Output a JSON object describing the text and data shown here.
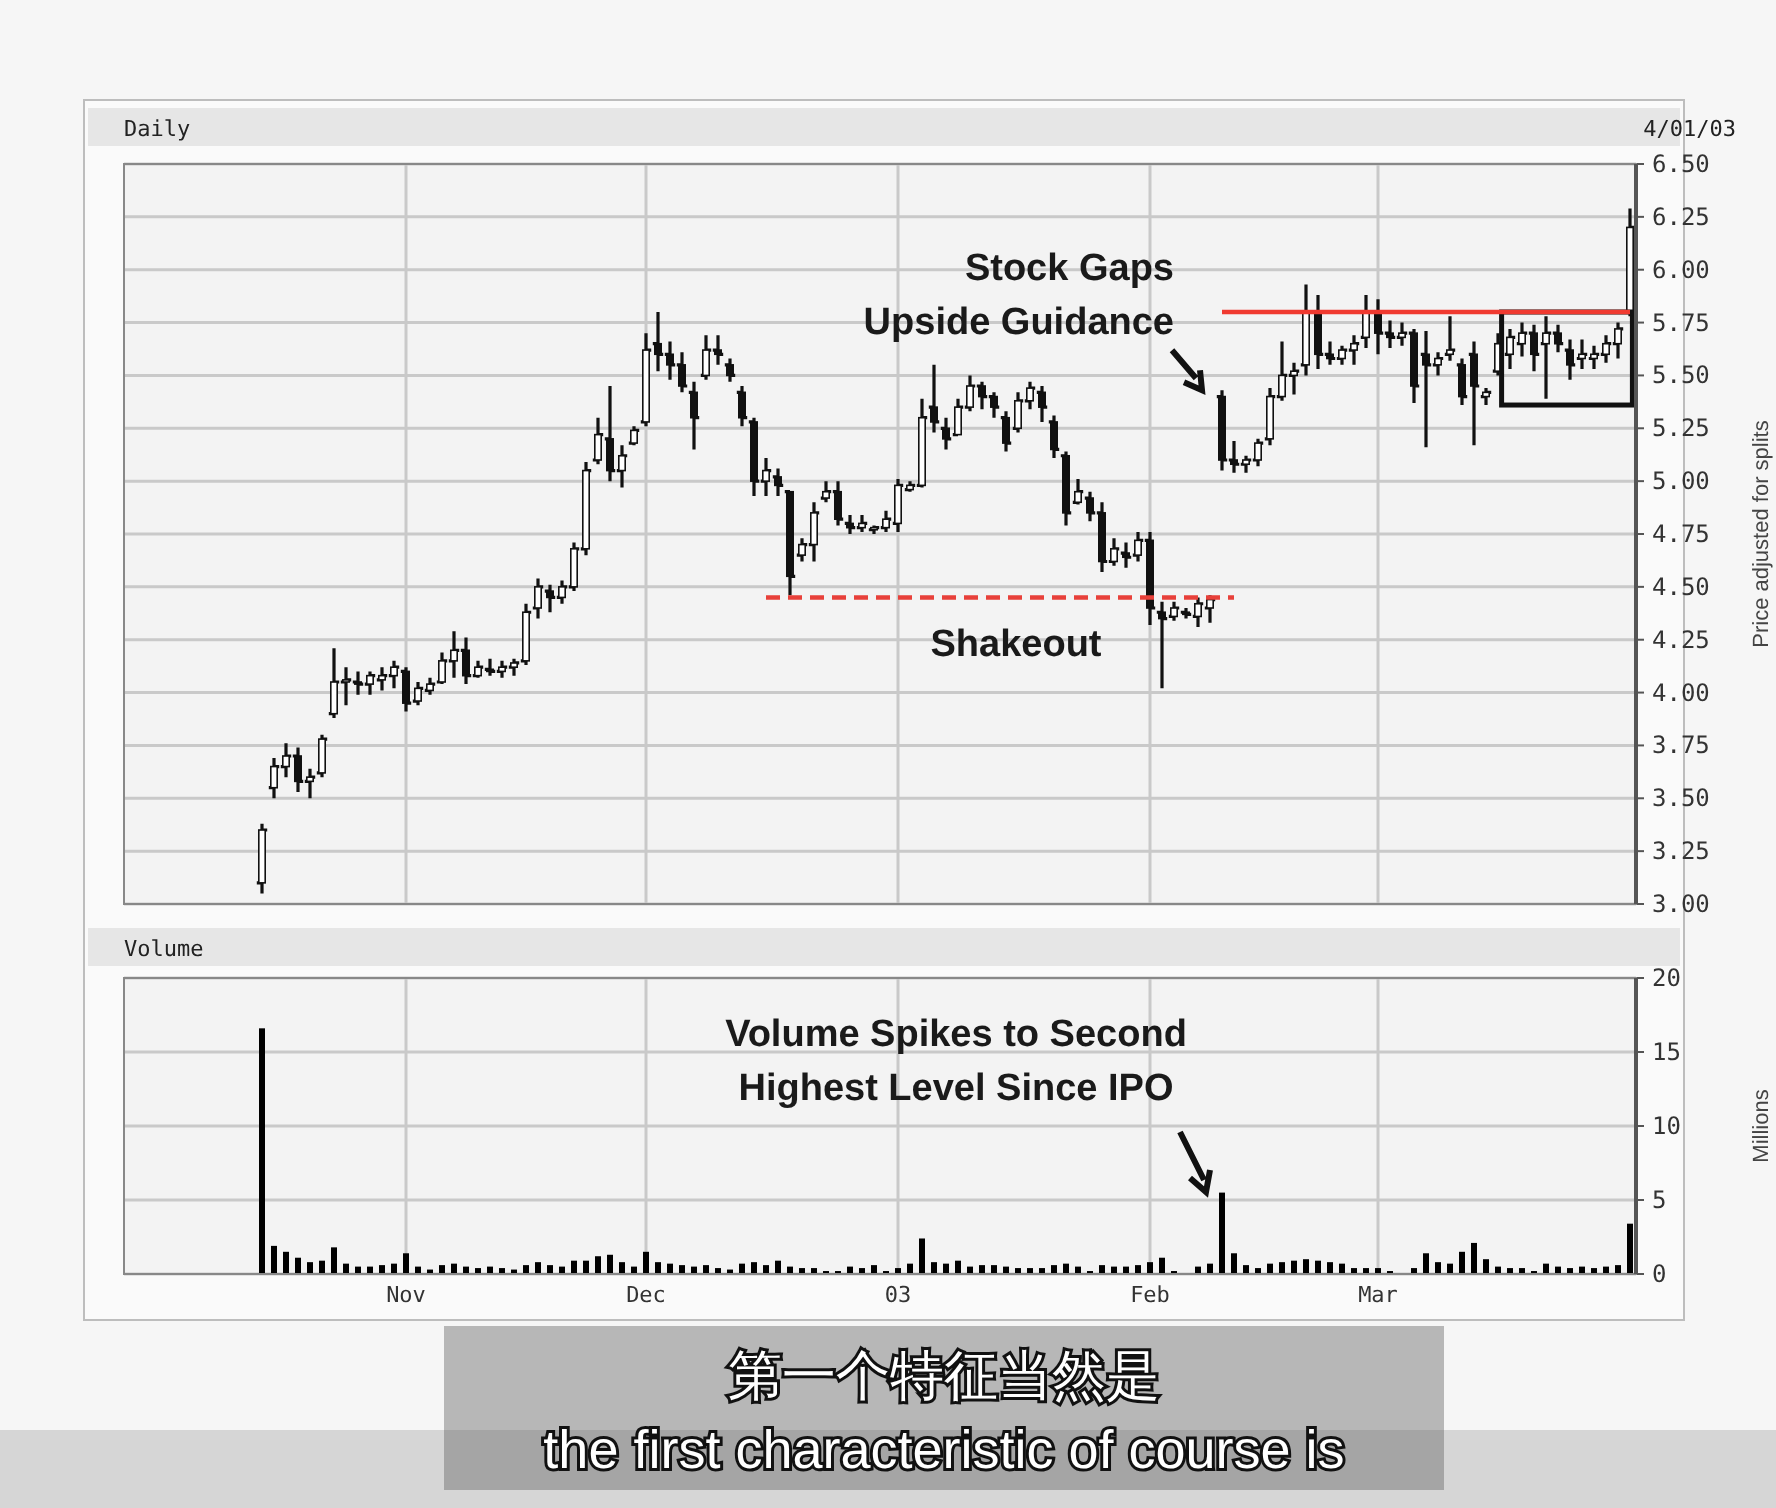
{
  "chart_data": [
    {
      "type": "candlestick",
      "title": "Daily",
      "ylabel": "Price adjusted for splits",
      "categories": [
        null,
        null,
        null,
        null,
        null,
        null,
        null,
        null,
        null,
        null,
        null,
        null,
        null,
        null,
        null,
        null,
        null,
        null,
        null,
        null,
        null,
        null,
        null,
        null,
        null,
        null,
        null,
        null,
        null,
        null,
        null,
        null,
        null,
        null,
        null,
        null,
        null,
        null,
        null,
        null,
        null,
        null,
        null,
        null,
        null,
        null,
        null,
        null,
        null,
        null,
        null,
        null,
        null,
        null,
        null,
        null,
        null,
        null,
        null,
        null,
        null,
        null,
        null,
        null,
        null,
        null,
        null,
        null,
        null,
        null,
        null,
        null,
        null,
        null,
        null,
        null,
        null,
        null,
        null,
        null,
        null,
        null,
        null,
        null,
        null,
        null,
        null,
        null,
        null,
        null,
        null,
        null,
        null,
        null,
        null,
        null,
        null,
        null,
        null,
        null,
        null,
        null,
        null,
        null,
        null,
        null,
        null,
        null,
        null,
        null,
        null,
        null,
        null,
        null,
        null,
        null,
        null,
        null,
        null,
        null,
        null,
        null,
        null,
        null,
        null,
        null
      ],
      "ohlc": [
        null,
        null,
        null,
        null,
        null,
        null,
        null,
        null,
        null,
        null,
        null,
        [
          3.1,
          3.38,
          3.05,
          3.35
        ],
        [
          3.55,
          3.69,
          3.5,
          3.65
        ],
        [
          3.65,
          3.76,
          3.6,
          3.7
        ],
        [
          3.7,
          3.74,
          3.53,
          3.58
        ],
        [
          3.58,
          3.64,
          3.5,
          3.6
        ],
        [
          3.62,
          3.8,
          3.6,
          3.78
        ],
        [
          3.9,
          4.21,
          3.88,
          4.05
        ],
        [
          4.05,
          4.12,
          3.94,
          4.06
        ],
        [
          4.05,
          4.1,
          3.99,
          4.04
        ],
        [
          4.04,
          4.1,
          3.99,
          4.08
        ],
        [
          4.06,
          4.12,
          4.01,
          4.08
        ],
        [
          4.08,
          4.15,
          4.02,
          4.12
        ],
        [
          4.1,
          4.12,
          3.91,
          3.95
        ],
        [
          3.96,
          4.05,
          3.94,
          4.02
        ],
        [
          4.01,
          4.07,
          3.99,
          4.04
        ],
        [
          4.05,
          4.19,
          4.04,
          4.15
        ],
        [
          4.15,
          4.29,
          4.07,
          4.2
        ],
        [
          4.2,
          4.26,
          4.04,
          4.08
        ],
        [
          4.08,
          4.15,
          4.07,
          4.12
        ],
        [
          4.11,
          4.16,
          4.08,
          4.1
        ],
        [
          4.1,
          4.15,
          4.07,
          4.12
        ],
        [
          4.12,
          4.16,
          4.08,
          4.14
        ],
        [
          4.15,
          4.42,
          4.13,
          4.38
        ],
        [
          4.4,
          4.54,
          4.35,
          4.5
        ],
        [
          4.48,
          4.51,
          4.38,
          4.45
        ],
        [
          4.45,
          4.53,
          4.42,
          4.5
        ],
        [
          4.5,
          4.71,
          4.48,
          4.68
        ],
        [
          4.68,
          5.09,
          4.65,
          5.05
        ],
        [
          5.1,
          5.3,
          5.08,
          5.22
        ],
        [
          5.2,
          5.45,
          5.0,
          5.05
        ],
        [
          5.05,
          5.17,
          4.97,
          5.12
        ],
        [
          5.18,
          5.26,
          5.17,
          5.24
        ],
        [
          5.28,
          5.7,
          5.26,
          5.62
        ],
        [
          5.65,
          5.8,
          5.52,
          5.6
        ],
        [
          5.6,
          5.66,
          5.48,
          5.55
        ],
        [
          5.55,
          5.61,
          5.42,
          5.45
        ],
        [
          5.42,
          5.47,
          5.15,
          5.3
        ],
        [
          5.5,
          5.69,
          5.48,
          5.62
        ],
        [
          5.62,
          5.69,
          5.55,
          5.6
        ],
        [
          5.55,
          5.58,
          5.47,
          5.5
        ],
        [
          5.42,
          5.45,
          5.26,
          5.3
        ],
        [
          5.28,
          5.3,
          4.93,
          5.0
        ],
        [
          5.0,
          5.11,
          4.93,
          5.05
        ],
        [
          5.02,
          5.06,
          4.93,
          4.98
        ],
        [
          4.95,
          4.95,
          4.46,
          4.55
        ],
        [
          4.65,
          4.73,
          4.62,
          4.7
        ],
        [
          4.7,
          4.9,
          4.62,
          4.85
        ],
        [
          4.92,
          5.0,
          4.9,
          4.95
        ],
        [
          4.95,
          5.0,
          4.79,
          4.82
        ],
        [
          4.8,
          4.84,
          4.75,
          4.78
        ],
        [
          4.78,
          4.84,
          4.76,
          4.8
        ],
        [
          4.77,
          4.79,
          4.75,
          4.78
        ],
        [
          4.78,
          4.86,
          4.76,
          4.82
        ],
        [
          4.8,
          5.01,
          4.76,
          4.98
        ],
        [
          4.96,
          5.0,
          4.95,
          4.98
        ],
        [
          4.98,
          5.39,
          4.97,
          5.3
        ],
        [
          5.35,
          5.55,
          5.23,
          5.28
        ],
        [
          5.25,
          5.3,
          5.15,
          5.2
        ],
        [
          5.22,
          5.39,
          5.22,
          5.35
        ],
        [
          5.35,
          5.5,
          5.33,
          5.45
        ],
        [
          5.45,
          5.47,
          5.34,
          5.4
        ],
        [
          5.4,
          5.42,
          5.3,
          5.35
        ],
        [
          5.3,
          5.33,
          5.14,
          5.18
        ],
        [
          5.25,
          5.42,
          5.23,
          5.38
        ],
        [
          5.38,
          5.47,
          5.34,
          5.44
        ],
        [
          5.42,
          5.45,
          5.28,
          5.35
        ],
        [
          5.28,
          5.31,
          5.11,
          5.15
        ],
        [
          5.12,
          5.14,
          4.79,
          4.85
        ],
        [
          4.9,
          5.01,
          4.89,
          4.95
        ],
        [
          4.92,
          4.95,
          4.81,
          4.85
        ],
        [
          4.85,
          4.9,
          4.57,
          4.62
        ],
        [
          4.62,
          4.73,
          4.6,
          4.68
        ],
        [
          4.66,
          4.71,
          4.59,
          4.64
        ],
        [
          4.65,
          4.76,
          4.62,
          4.72
        ],
        [
          4.72,
          4.76,
          4.32,
          4.4
        ],
        [
          4.38,
          4.43,
          4.02,
          4.35
        ],
        [
          4.36,
          4.43,
          4.34,
          4.4
        ],
        [
          4.38,
          4.4,
          4.35,
          4.37
        ],
        [
          4.36,
          4.45,
          4.31,
          4.42
        ],
        [
          4.4,
          4.46,
          4.33,
          4.44
        ],
        [
          5.4,
          5.43,
          5.05,
          5.1
        ],
        [
          5.1,
          5.19,
          5.04,
          5.08
        ],
        [
          5.08,
          5.12,
          5.04,
          5.1
        ],
        [
          5.1,
          5.2,
          5.07,
          5.18
        ],
        [
          5.2,
          5.44,
          5.17,
          5.4
        ],
        [
          5.4,
          5.66,
          5.38,
          5.5
        ],
        [
          5.5,
          5.56,
          5.41,
          5.52
        ],
        [
          5.55,
          5.93,
          5.5,
          5.8
        ],
        [
          5.8,
          5.88,
          5.53,
          5.6
        ],
        [
          5.6,
          5.66,
          5.55,
          5.58
        ],
        [
          5.58,
          5.64,
          5.55,
          5.62
        ],
        [
          5.62,
          5.69,
          5.55,
          5.65
        ],
        [
          5.68,
          5.88,
          5.63,
          5.8
        ],
        [
          5.8,
          5.86,
          5.6,
          5.7
        ],
        [
          5.7,
          5.76,
          5.63,
          5.68
        ],
        [
          5.68,
          5.75,
          5.64,
          5.7
        ],
        [
          5.7,
          5.72,
          5.37,
          5.45
        ],
        [
          5.6,
          5.71,
          5.16,
          5.55
        ],
        [
          5.55,
          5.61,
          5.5,
          5.58
        ],
        [
          5.6,
          5.78,
          5.57,
          5.62
        ],
        [
          5.55,
          5.58,
          5.36,
          5.4
        ],
        [
          5.6,
          5.66,
          5.17,
          5.45
        ],
        [
          5.4,
          5.44,
          5.36,
          5.42
        ],
        [
          5.52,
          5.7,
          5.5,
          5.65
        ],
        [
          5.6,
          5.72,
          5.53,
          5.68
        ],
        [
          5.65,
          5.75,
          5.59,
          5.7
        ],
        [
          5.7,
          5.74,
          5.52,
          5.6
        ],
        [
          5.65,
          5.78,
          5.39,
          5.7
        ],
        [
          5.7,
          5.74,
          5.61,
          5.65
        ],
        [
          5.62,
          5.67,
          5.48,
          5.55
        ],
        [
          5.58,
          5.67,
          5.53,
          5.6
        ],
        [
          5.58,
          5.64,
          5.53,
          5.6
        ],
        [
          5.6,
          5.69,
          5.56,
          5.65
        ],
        [
          5.65,
          5.75,
          5.58,
          5.72
        ],
        [
          5.8,
          6.29,
          5.78,
          6.2
        ]
      ],
      "series": [
        {
          "type": "line",
          "color": "#e8403a",
          "line_style": "dashed",
          "values": [
            null,
            null,
            null,
            null,
            null,
            null,
            null,
            null,
            null,
            null,
            null,
            null,
            null,
            null,
            null,
            null,
            null,
            null,
            null,
            null,
            null,
            null,
            null,
            null,
            null,
            null,
            null,
            null,
            null,
            null,
            null,
            null,
            null,
            null,
            null,
            null,
            null,
            null,
            null,
            null,
            null,
            null,
            null,
            null,
            null,
            null,
            null,
            null,
            null,
            null,
            null,
            null,
            null,
            4.45,
            4.45,
            4.45,
            4.45,
            4.45,
            4.45,
            4.45,
            4.45,
            4.45,
            4.45,
            4.45,
            4.45,
            4.45,
            4.45,
            4.45,
            4.45,
            4.45,
            4.45,
            4.45,
            4.45,
            4.45,
            4.45,
            4.45,
            4.45,
            4.45,
            4.45,
            4.45,
            4.45,
            4.45,
            4.45,
            4.45,
            4.45,
            4.45,
            4.45,
            4.45,
            4.45,
            4.45,
            4.45,
            4.45,
            4.45,
            null,
            null,
            null,
            null,
            null,
            null,
            null,
            null,
            null,
            null,
            null,
            null,
            null,
            null,
            null,
            null,
            null,
            null,
            null,
            null,
            null,
            null,
            null,
            null,
            null,
            null,
            null,
            null,
            null,
            null,
            null,
            null,
            null
          ]
        },
        {
          "type": "line",
          "color": "#f03a30",
          "line_style": "solid",
          "values": [
            null,
            null,
            null,
            null,
            null,
            null,
            null,
            null,
            null,
            null,
            null,
            null,
            null,
            null,
            null,
            null,
            null,
            null,
            null,
            null,
            null,
            null,
            null,
            null,
            null,
            null,
            null,
            null,
            null,
            null,
            null,
            null,
            null,
            null,
            null,
            null,
            null,
            null,
            null,
            null,
            null,
            null,
            null,
            null,
            null,
            null,
            null,
            null,
            null,
            null,
            null,
            null,
            null,
            null,
            null,
            null,
            null,
            null,
            null,
            null,
            null,
            null,
            null,
            null,
            null,
            null,
            null,
            null,
            null,
            null,
            null,
            null,
            null,
            null,
            null,
            null,
            null,
            null,
            null,
            null,
            null,
            null,
            null,
            null,
            null,
            null,
            null,
            null,
            null,
            null,
            null,
            5.8,
            5.8,
            5.8,
            5.8,
            5.8,
            5.8,
            5.8,
            5.8,
            5.8,
            5.8,
            5.8,
            5.8,
            5.8,
            5.8,
            5.8,
            5.8,
            5.8,
            5.8,
            5.8,
            5.8,
            5.8,
            5.8,
            5.8,
            5.8,
            5.8,
            5.8,
            5.8,
            5.8,
            5.8,
            5.8,
            5.8,
            5.8,
            5.8,
            5.8,
            5.8
          ]
        }
      ],
      "ylim": [
        3,
        6.5
      ],
      "yticks": [
        {
          "value": 3,
          "label": "3.00"
        },
        {
          "value": 3.25,
          "label": "3.25"
        },
        {
          "value": 3.5,
          "label": "3.50"
        },
        {
          "value": 3.75,
          "label": "3.75"
        },
        {
          "value": 4,
          "label": "4.00"
        },
        {
          "value": 4.25,
          "label": "4.25"
        },
        {
          "value": 4.5,
          "label": "4.50"
        },
        {
          "value": 4.75,
          "label": "4.75"
        },
        {
          "value": 5,
          "label": "5.00"
        },
        {
          "value": 5.25,
          "label": "5.25"
        },
        {
          "value": 5.5,
          "label": "5.50"
        },
        {
          "value": 5.75,
          "label": "5.75"
        },
        {
          "value": 6,
          "label": "6.00"
        },
        {
          "value": 6.25,
          "label": "6.25"
        },
        {
          "value": 6.5,
          "label": "6.50"
        }
      ],
      "grid": true,
      "tick_labels": "y",
      "annotations": [
        "4/01/03",
        {
          "text": "Stock Gaps\nUpside Guidance",
          "y": 5.43
        },
        "Shakeout"
      ]
    },
    {
      "type": "bar",
      "title": "Volume",
      "ylabel": "Millions",
      "color": "#000000",
      "categories": [
        null,
        null,
        null,
        null,
        null,
        null,
        null,
        null,
        null,
        null,
        null,
        null,
        null,
        null,
        null,
        null,
        null,
        null,
        null,
        null,
        null,
        null,
        null,
        "Nov",
        null,
        null,
        null,
        null,
        null,
        null,
        null,
        null,
        null,
        null,
        null,
        null,
        null,
        null,
        null,
        null,
        null,
        null,
        null,
        "Dec",
        null,
        null,
        null,
        null,
        null,
        null,
        null,
        null,
        null,
        null,
        null,
        null,
        null,
        null,
        null,
        null,
        null,
        null,
        null,
        null,
        "03",
        null,
        null,
        null,
        null,
        null,
        null,
        null,
        null,
        null,
        null,
        null,
        null,
        null,
        null,
        null,
        null,
        null,
        null,
        null,
        null,
        "Feb",
        null,
        null,
        null,
        null,
        null,
        null,
        null,
        null,
        null,
        null,
        null,
        null,
        null,
        null,
        null,
        null,
        null,
        null,
        "Mar",
        null,
        null,
        null,
        null,
        null,
        null,
        null,
        null,
        null,
        null,
        null,
        null,
        null,
        null,
        null,
        null,
        null,
        null,
        null,
        null,
        null
      ],
      "values": [
        null,
        null,
        null,
        null,
        null,
        null,
        null,
        null,
        null,
        null,
        null,
        16.6,
        1.9,
        1.5,
        1.1,
        0.8,
        0.9,
        1.8,
        0.7,
        0.5,
        0.5,
        0.6,
        0.7,
        1.4,
        0.5,
        0.3,
        0.6,
        0.7,
        0.5,
        0.4,
        0.5,
        0.4,
        0.3,
        0.6,
        0.8,
        0.6,
        0.5,
        0.9,
        0.9,
        1.2,
        1.3,
        0.8,
        0.5,
        1.5,
        0.8,
        0.7,
        0.6,
        0.5,
        0.6,
        0.4,
        0.3,
        0.7,
        0.8,
        0.6,
        0.9,
        0.5,
        0.4,
        0.4,
        0.2,
        0.2,
        0.5,
        0.4,
        0.6,
        0.2,
        0.4,
        0.7,
        2.4,
        0.8,
        0.7,
        0.9,
        0.5,
        0.6,
        0.6,
        0.5,
        0.4,
        0.4,
        0.4,
        0.6,
        0.7,
        0.5,
        0.2,
        0.6,
        0.5,
        0.5,
        0.6,
        0.8,
        1.1,
        0.2,
        null,
        0.5,
        0.7,
        5.5,
        1.4,
        0.6,
        0.4,
        0.7,
        0.8,
        0.9,
        1.0,
        0.9,
        0.8,
        0.7,
        0.4,
        0.4,
        0.4,
        0.2,
        null,
        0.4,
        1.4,
        0.8,
        0.7,
        1.5,
        2.1,
        1.0,
        0.5,
        0.4,
        0.4,
        0.2,
        0.7,
        0.5,
        0.4,
        0.5,
        0.4,
        0.5,
        0.6,
        3.4
      ],
      "ylim": [
        0,
        20
      ],
      "yticks": [
        0,
        5,
        10,
        15,
        20
      ],
      "grid": true,
      "annotations": [
        "Volume Spikes to Second\nHighest Level Since IPO",
        "第一个特征当然是",
        "the first characteristic of course is"
      ]
    }
  ]
}
